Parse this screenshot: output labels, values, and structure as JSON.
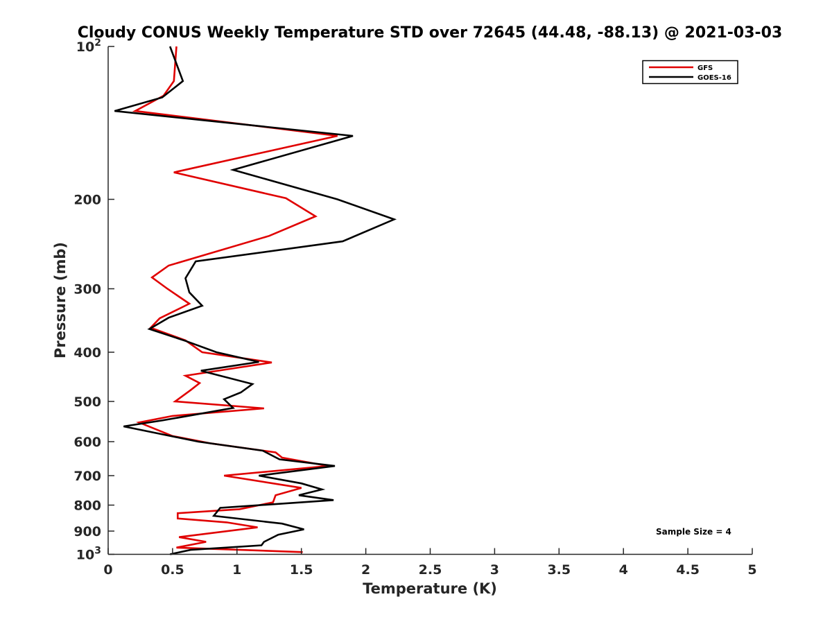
{
  "chart_data": {
    "type": "line",
    "title": "Cloudy CONUS Weekly Temperature STD over 72645 (44.48, -88.13) @ 2021-03-03",
    "xlabel": "Temperature (K)",
    "ylabel": "Pressure (mb)",
    "xlim": [
      0,
      5
    ],
    "ylim": [
      100,
      1000
    ],
    "yscale": "log",
    "y_reversed": true,
    "x_ticks": [
      "0",
      "0.5",
      "1",
      "1.5",
      "2",
      "2.5",
      "3",
      "3.5",
      "4",
      "4.5",
      "5"
    ],
    "x_tick_values": [
      0,
      0.5,
      1,
      1.5,
      2,
      2.5,
      3,
      3.5,
      4,
      4.5,
      5
    ],
    "y_ticks": [
      {
        "value": 100,
        "base": "10",
        "exp": "2"
      },
      {
        "value": 200,
        "label": "200"
      },
      {
        "value": 300,
        "label": "300"
      },
      {
        "value": 400,
        "label": "400"
      },
      {
        "value": 500,
        "label": "500"
      },
      {
        "value": 600,
        "label": "600"
      },
      {
        "value": 700,
        "label": "700"
      },
      {
        "value": 800,
        "label": "800"
      },
      {
        "value": 900,
        "label": "900"
      },
      {
        "value": 1000,
        "base": "10",
        "exp": "3"
      }
    ],
    "grid": false,
    "legend_position": "top-right",
    "annotation": "Sample Size = 4",
    "series": [
      {
        "name": "GFS",
        "color": "#e00000",
        "points": [
          [
            0.53,
            100
          ],
          [
            0.51,
            117
          ],
          [
            0.43,
            125
          ],
          [
            0.21,
            134
          ],
          [
            1.78,
            150
          ],
          [
            0.51,
            177
          ],
          [
            1.38,
            199
          ],
          [
            1.61,
            216
          ],
          [
            1.25,
            236
          ],
          [
            0.47,
            270
          ],
          [
            0.34,
            285
          ],
          [
            0.46,
            300
          ],
          [
            0.63,
            321
          ],
          [
            0.4,
            343
          ],
          [
            0.33,
            358
          ],
          [
            0.6,
            379
          ],
          [
            0.73,
            400
          ],
          [
            1.27,
            419
          ],
          [
            0.6,
            445
          ],
          [
            0.71,
            460
          ],
          [
            0.64,
            475
          ],
          [
            0.52,
            500
          ],
          [
            1.21,
            516
          ],
          [
            0.5,
            534
          ],
          [
            0.24,
            550
          ],
          [
            0.5,
            585
          ],
          [
            0.8,
            605
          ],
          [
            1.3,
            630
          ],
          [
            1.35,
            645
          ],
          [
            1.71,
            670
          ],
          [
            0.9,
            700
          ],
          [
            1.5,
            740
          ],
          [
            1.3,
            765
          ],
          [
            1.28,
            790
          ],
          [
            1.02,
            815
          ],
          [
            0.54,
            830
          ],
          [
            0.54,
            850
          ],
          [
            0.92,
            865
          ],
          [
            1.16,
            885
          ],
          [
            0.55,
            925
          ],
          [
            0.76,
            945
          ],
          [
            0.53,
            970
          ],
          [
            1.51,
            990
          ]
        ]
      },
      {
        "name": "GOES-16",
        "color": "#000000",
        "points": [
          [
            0.48,
            100
          ],
          [
            0.58,
            117
          ],
          [
            0.42,
            126
          ],
          [
            0.05,
            134
          ],
          [
            1.9,
            150
          ],
          [
            0.97,
            175
          ],
          [
            1.78,
            200
          ],
          [
            2.22,
            219
          ],
          [
            1.82,
            242
          ],
          [
            0.68,
            265
          ],
          [
            0.6,
            286
          ],
          [
            0.63,
            305
          ],
          [
            0.73,
            324
          ],
          [
            0.47,
            342
          ],
          [
            0.32,
            360
          ],
          [
            0.6,
            380
          ],
          [
            0.84,
            400
          ],
          [
            1.17,
            418
          ],
          [
            0.72,
            435
          ],
          [
            1.12,
            462
          ],
          [
            1.03,
            480
          ],
          [
            0.9,
            495
          ],
          [
            0.97,
            515
          ],
          [
            0.42,
            545
          ],
          [
            0.12,
            560
          ],
          [
            0.7,
            600
          ],
          [
            1.2,
            625
          ],
          [
            1.33,
            650
          ],
          [
            1.76,
            670
          ],
          [
            1.17,
            700
          ],
          [
            1.5,
            725
          ],
          [
            1.66,
            745
          ],
          [
            1.48,
            765
          ],
          [
            1.75,
            782
          ],
          [
            0.87,
            810
          ],
          [
            0.82,
            840
          ],
          [
            1.35,
            870
          ],
          [
            1.52,
            893
          ],
          [
            1.32,
            915
          ],
          [
            1.21,
            945
          ],
          [
            1.19,
            960
          ],
          [
            0.64,
            980
          ],
          [
            0.48,
            1000
          ]
        ]
      }
    ]
  }
}
